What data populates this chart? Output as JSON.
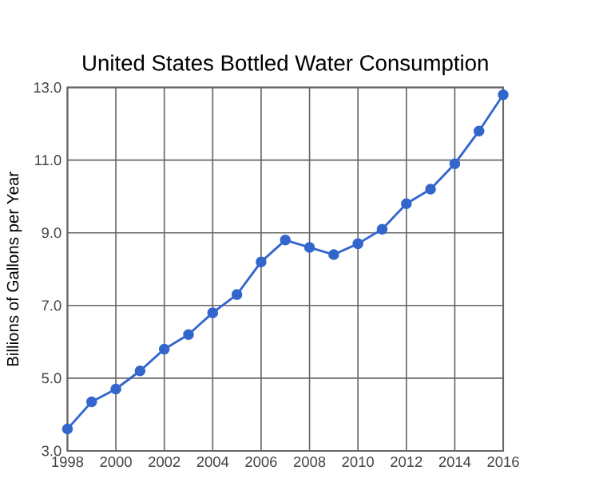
{
  "chart_data": {
    "type": "line",
    "title": "United States Bottled Water Consumption",
    "ylabel": "Billions of Gallons per Year",
    "x": [
      1998,
      1999,
      2000,
      2001,
      2002,
      2003,
      2004,
      2005,
      2006,
      2007,
      2008,
      2009,
      2010,
      2011,
      2012,
      2013,
      2014,
      2015,
      2016
    ],
    "series": [
      {
        "color": "#3366cc",
        "values": [
          3.6,
          4.35,
          4.7,
          5.2,
          5.8,
          6.2,
          6.8,
          7.3,
          8.2,
          8.8,
          8.6,
          8.4,
          8.7,
          9.1,
          9.8,
          10.2,
          10.9,
          11.8,
          12.8
        ]
      }
    ],
    "xlim": [
      1998,
      2016
    ],
    "xticks": [
      1998,
      2000,
      2002,
      2004,
      2006,
      2008,
      2010,
      2012,
      2014,
      2016
    ],
    "ylim": [
      3,
      13
    ],
    "yticks": [
      {
        "value": 3,
        "label": "3.0"
      },
      {
        "value": 5,
        "label": "5.0"
      },
      {
        "value": 7,
        "label": "7.0"
      },
      {
        "value": 9,
        "label": "9.0"
      },
      {
        "value": 11,
        "label": "11.0"
      },
      {
        "value": 13,
        "label": "13.0"
      }
    ],
    "grid": true,
    "marker": "circle",
    "line_style": "solid"
  }
}
